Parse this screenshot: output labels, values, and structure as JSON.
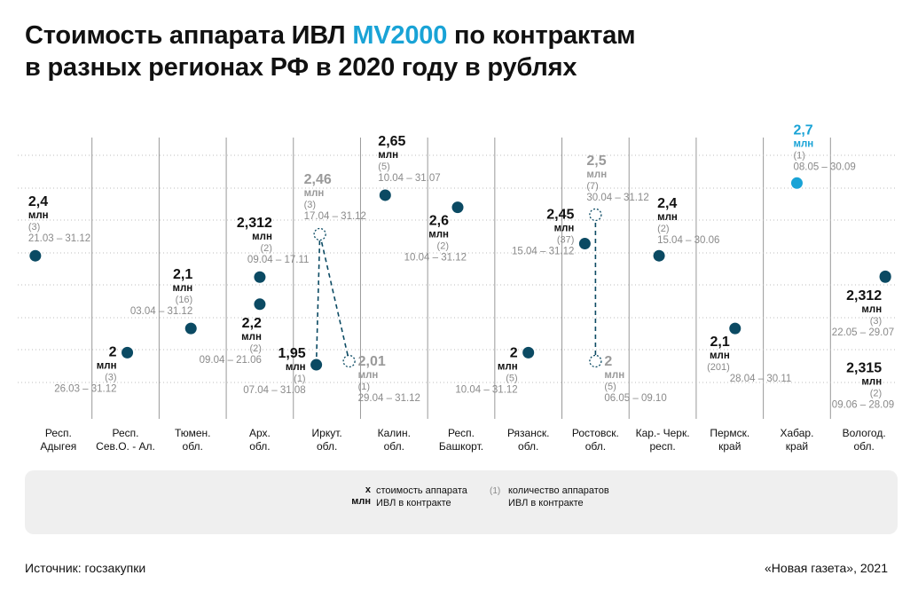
{
  "title": {
    "line1_pre": "Стоимость аппарата ИВЛ ",
    "line1_accent": "MV2000",
    "line1_post": " по контрактам",
    "line2": "в разных регионах РФ в 2020 году в рублях"
  },
  "legend": {
    "value_sample": "x",
    "value_unit": "млн",
    "value_desc": "стоимость аппарата ИВЛ в контракте",
    "count_sample": "(1)",
    "count_desc": "количество аппаратов ИВЛ в контракте"
  },
  "source": "Источник: госзакупки",
  "credit": "«Новая газета», 2021",
  "colors": {
    "dot": "#0b4a63",
    "highlight": "#19a3d6",
    "ghost": "#9a9a9a",
    "grid": "#bdbdbd",
    "date": "#8a8a8a"
  },
  "chart_data": {
    "type": "scatter",
    "unit": "млн",
    "ylim": [
      1.8,
      2.78
    ],
    "regions": [
      {
        "label": "Респ.\nАдыгея",
        "points": [
          {
            "value": 2.4,
            "label": "2,4",
            "count": 3,
            "dates": "21.03 – 31.12"
          }
        ]
      },
      {
        "label": "Респ.\nСев.О. - Ал.",
        "points": [
          {
            "value": 2.0,
            "label": "2",
            "count": 3,
            "dates": "26.03 – 31.12"
          }
        ]
      },
      {
        "label": "Тюмен.\nобл.",
        "points": [
          {
            "value": 2.1,
            "label": "2,1",
            "count": 16,
            "dates": "03.04 – 31.12"
          }
        ]
      },
      {
        "label": "Арх.\nобл.",
        "points": [
          {
            "value": 2.312,
            "label": "2,312",
            "count": 2,
            "dates": "09.04 – 17.11"
          },
          {
            "value": 2.2,
            "label": "2,2",
            "count": 2,
            "dates": "09.04 – 21.06"
          }
        ]
      },
      {
        "label": "Иркут.\nобл.",
        "points": [
          {
            "value": 1.95,
            "label": "1,95",
            "count": 1,
            "dates": "07.04 – 31.08"
          },
          {
            "value": 2.46,
            "label": "2,46",
            "count": 3,
            "dates": "17.04 – 31.12",
            "ghost": true
          },
          {
            "value": 2.01,
            "label": "2,01",
            "count": 1,
            "dates": "29.04 – 31.12",
            "ghost": true
          }
        ]
      },
      {
        "label": "Калин.\nобл.",
        "points": [
          {
            "value": 2.65,
            "label": "2,65",
            "count": 5,
            "dates": "10.04 – 31.07"
          }
        ]
      },
      {
        "label": "Респ.\nБашкорт.",
        "points": [
          {
            "value": 2.6,
            "label": "2,6",
            "count": 2,
            "dates": "10.04 – 31.12"
          }
        ]
      },
      {
        "label": "Рязанск.\nобл.",
        "points": [
          {
            "value": 2.0,
            "label": "2",
            "count": 5,
            "dates": "10.04 – 31.12"
          }
        ]
      },
      {
        "label": "Ростовск.\nобл.",
        "points": [
          {
            "value": 2.45,
            "label": "2,45",
            "count": 37,
            "dates": "15.04 – 31.12"
          },
          {
            "value": 2.5,
            "label": "2,5",
            "count": 7,
            "dates": "30.04 – 31.12",
            "ghost": true
          },
          {
            "value": 2.0,
            "label": "2",
            "count": 5,
            "dates": "06.05 – 09.10",
            "ghost": true
          }
        ]
      },
      {
        "label": "Кар.- Черк.\nресп.",
        "points": [
          {
            "value": 2.4,
            "label": "2,4",
            "count": 2,
            "dates": "15.04 – 30.06"
          }
        ]
      },
      {
        "label": "Пермск.\nкрай",
        "points": [
          {
            "value": 2.1,
            "label": "2,1",
            "count": 201,
            "dates": "28.04 – 30.11"
          }
        ]
      },
      {
        "label": "Хабар.\nкрай",
        "points": [
          {
            "value": 2.7,
            "label": "2,7",
            "count": 1,
            "dates": "08.05 – 30.09",
            "highlight": true
          }
        ]
      },
      {
        "label": "Вологод.\nобл.",
        "points": [
          {
            "value": 2.312,
            "label": "2,312",
            "count": 3,
            "dates": "22.05 – 29.07"
          },
          {
            "value": 2.315,
            "label": "2,315",
            "count": 2,
            "dates": "09.06 – 28.09"
          }
        ]
      }
    ]
  }
}
